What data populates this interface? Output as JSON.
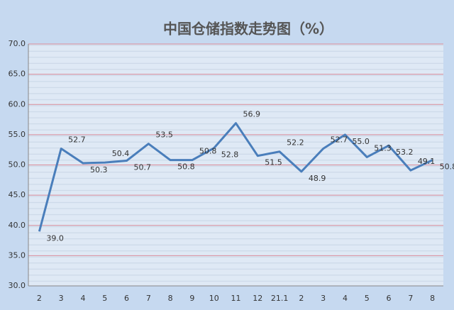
{
  "chart_data": {
    "type": "line",
    "title": "中国仓储指数走势图（%）",
    "categories": [
      "2",
      "3",
      "4",
      "5",
      "6",
      "7",
      "8",
      "9",
      "10",
      "11",
      "12",
      "21.1",
      "2",
      "3",
      "4",
      "5",
      "6",
      "7",
      "8"
    ],
    "series": [
      {
        "color": "#4a7ebb",
        "values": [
          39.0,
          52.7,
          50.3,
          50.4,
          50.7,
          53.5,
          50.8,
          50.8,
          52.8,
          56.9,
          51.5,
          52.2,
          48.9,
          52.7,
          55.0,
          51.3,
          53.2,
          49.1,
          50.8
        ],
        "value_labels": [
          "39.0",
          "52.7",
          "50.3",
          "50.4",
          "50.7",
          "53.5",
          "50.8",
          "50.8",
          "52.8",
          "56.9",
          "51.5",
          "52.2",
          "48.9",
          "52.7",
          "55.0",
          "51.3",
          "53.2",
          "49.1",
          "50.8"
        ]
      }
    ],
    "ylim": [
      30,
      70
    ],
    "yticks": [
      {
        "value": 30,
        "label": "30.0"
      },
      {
        "value": 35,
        "label": "35.0"
      },
      {
        "value": 40,
        "label": "40.0"
      },
      {
        "value": 45,
        "label": "45.0"
      },
      {
        "value": 50,
        "label": "50.0"
      },
      {
        "value": 55,
        "label": "55.0"
      },
      {
        "value": 60,
        "label": "60.0"
      },
      {
        "value": 65,
        "label": "65.0"
      },
      {
        "value": 70,
        "label": "70.0"
      }
    ],
    "grid": true
  }
}
